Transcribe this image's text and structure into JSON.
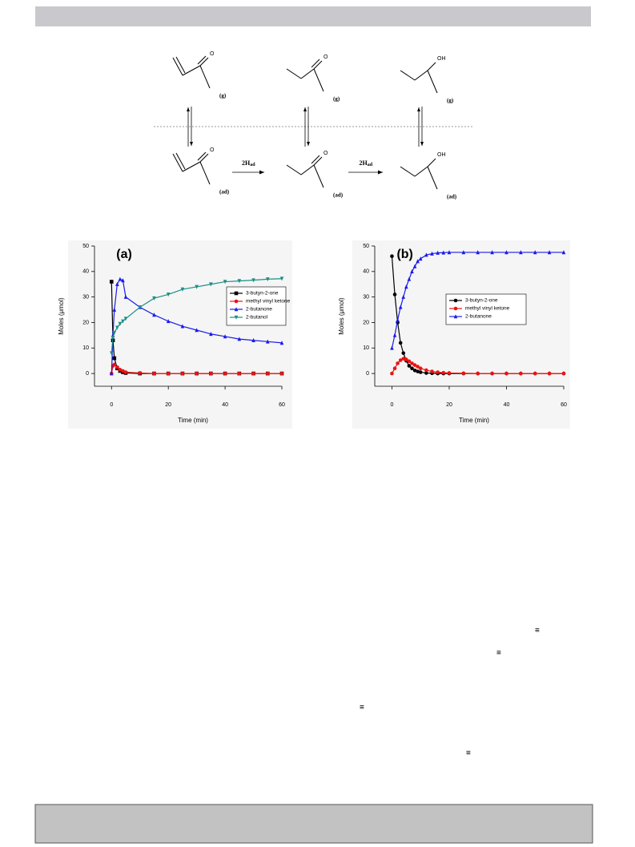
{
  "scheme": {
    "molecules": [
      {
        "atom": "O",
        "phase": "(g)"
      },
      {
        "atom": "O",
        "phase": "(g)"
      },
      {
        "atom": "OH",
        "phase": "(g)"
      },
      {
        "atom": "O",
        "phase": "(ad)"
      },
      {
        "atom": "O",
        "phase": "(ad)"
      },
      {
        "atom": "OH",
        "phase": "(ad)"
      }
    ],
    "arrows": [
      {
        "reagent": "2H",
        "subscript": "ad"
      },
      {
        "reagent": "2H",
        "subscript": "ad"
      }
    ]
  },
  "chart_data": [
    {
      "type": "line",
      "title": "(a)",
      "x_label": "Time (min)",
      "y_label": "Moles (μmol)",
      "xlim": [
        -6,
        60
      ],
      "ylim": [
        -5,
        50
      ],
      "xticks": [
        0,
        20,
        40,
        60
      ],
      "yticks": [
        0,
        10,
        20,
        30,
        40,
        50
      ],
      "legend": "upper right",
      "x": [
        0,
        0.5,
        1,
        2,
        3,
        4,
        5,
        10,
        15,
        20,
        25,
        30,
        35,
        40,
        45,
        50,
        55,
        60
      ],
      "series": [
        {
          "name": "3-butyn-2-one",
          "color": "#000000",
          "marker": "square",
          "values": [
            36,
            13,
            6,
            2,
            1,
            0.5,
            0.2,
            0,
            0,
            0,
            0,
            0,
            0,
            0,
            0,
            0,
            0,
            0
          ]
        },
        {
          "name": "methyl vinyl ketone",
          "color": "#ee1111",
          "marker": "circle",
          "values": [
            0,
            3,
            3.5,
            2.5,
            1.5,
            1,
            0.5,
            0.2,
            0,
            0,
            0,
            0,
            0,
            0,
            0,
            0,
            0,
            0
          ]
        },
        {
          "name": "2-butanone",
          "color": "#1a1aee",
          "marker": "triangle-up",
          "values": [
            0,
            15,
            25,
            35,
            37,
            36.5,
            30,
            26,
            23,
            20.5,
            18.5,
            17,
            15.5,
            14.5,
            13.5,
            13,
            12.5,
            12
          ]
        },
        {
          "name": "2-butanol",
          "color": "#1b8f86",
          "marker": "triangle-down",
          "values": [
            8,
            14,
            16,
            18,
            19.5,
            20.5,
            21.5,
            26,
            29.5,
            31,
            33,
            34,
            35,
            36,
            36.3,
            36.6,
            37,
            37.2
          ]
        }
      ]
    },
    {
      "type": "line",
      "title": "(b)",
      "x_label": "Time (min)",
      "y_label": "Moles (μmol)",
      "xlim": [
        -6,
        60
      ],
      "ylim": [
        -5,
        50
      ],
      "xticks": [
        0,
        20,
        40,
        60
      ],
      "yticks": [
        0,
        10,
        20,
        30,
        40,
        50
      ],
      "legend": "upper right",
      "x": [
        0,
        1,
        2,
        3,
        4,
        5,
        6,
        7,
        8,
        9,
        10,
        12,
        14,
        16,
        18,
        20,
        25,
        30,
        35,
        40,
        45,
        50,
        55,
        60
      ],
      "series": [
        {
          "name": "3-butyn-2-one",
          "color": "#000000",
          "marker": "circle",
          "values": [
            46,
            31,
            20,
            12,
            8,
            5,
            3,
            2,
            1.2,
            0.8,
            0.5,
            0.2,
            0.1,
            0,
            0,
            0,
            0,
            0,
            0,
            0,
            0,
            0,
            0,
            0
          ]
        },
        {
          "name": "methyl vinyl ketone",
          "color": "#ee1111",
          "marker": "circle",
          "values": [
            0,
            2,
            4,
            5.2,
            5.8,
            5.5,
            4.8,
            4,
            3.3,
            2.7,
            2,
            1.3,
            0.8,
            0.5,
            0.3,
            0.2,
            0.1,
            0,
            0,
            0,
            0,
            0,
            0,
            0
          ]
        },
        {
          "name": "2-butanone",
          "color": "#1a1aee",
          "marker": "triangle-up",
          "values": [
            10,
            15,
            21,
            26,
            30,
            34,
            37,
            40,
            42,
            44,
            45,
            46.5,
            47,
            47.3,
            47.4,
            47.5,
            47.5,
            47.5,
            47.5,
            47.5,
            47.5,
            47.5,
            47.5,
            47.5
          ]
        }
      ]
    }
  ],
  "fragments": [
    "≡",
    "≡",
    "≡",
    "≡"
  ]
}
